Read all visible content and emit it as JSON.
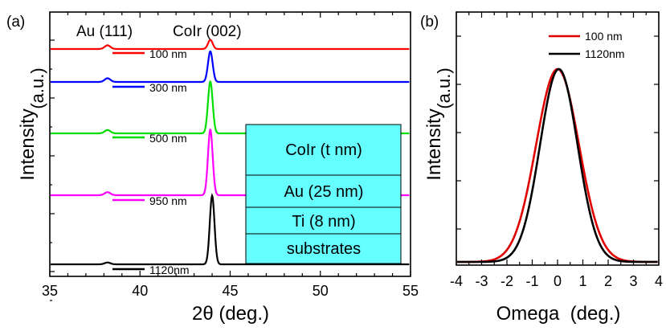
{
  "chart_data": [
    {
      "panel_label": "(a)",
      "type": "line",
      "xlabel": "2θ (deg.)",
      "ylabel": "Intensity",
      "ylabel_suffix": "(a.u.)",
      "xlim": [
        35,
        55
      ],
      "xticks": [
        "35",
        "40",
        "45",
        "50",
        "55"
      ],
      "peak_labels": [
        "Au (111)",
        "CoIr (002)"
      ],
      "series": [
        {
          "name": "100 nm",
          "color": "#ff0000",
          "peak_x": 43.9,
          "peak_rel": 0.3,
          "au_rel": 0.12
        },
        {
          "name": "300 nm",
          "color": "#0000ff",
          "peak_x": 43.9,
          "peak_rel": 1.0,
          "au_rel": 0.12
        },
        {
          "name": "500 nm",
          "color": "#00dd00",
          "peak_x": 43.9,
          "peak_rel": 1.7,
          "au_rel": 0.11
        },
        {
          "name": "950 nm",
          "color": "#ff00ff",
          "peak_x": 43.9,
          "peak_rel": 2.15,
          "au_rel": 0.1
        },
        {
          "name": "1120nm",
          "color": "#000000",
          "peak_x": 44.0,
          "peak_rel": 2.25,
          "au_rel": 0.06
        }
      ],
      "inset_layers": [
        "CoIr (t nm)",
        "Au (25 nm)",
        "Ti (8 nm)",
        "substrates"
      ],
      "inset_color": "#66ffff"
    },
    {
      "panel_label": "(b)",
      "type": "line",
      "xlabel": "Omega  (deg.)",
      "ylabel": "Intensity",
      "ylabel_suffix": "(a.u.)",
      "xlim": [
        -4,
        4
      ],
      "xticks": [
        "-4",
        "-3",
        "-2",
        "-1",
        "0",
        "1",
        "2",
        "3",
        "4"
      ],
      "series": [
        {
          "name": "100 nm",
          "color": "#e00000",
          "center": 0.0,
          "fwhm": 2.0
        },
        {
          "name": "1120nm",
          "color": "#000000",
          "center": 0.05,
          "fwhm": 1.75
        }
      ]
    }
  ]
}
